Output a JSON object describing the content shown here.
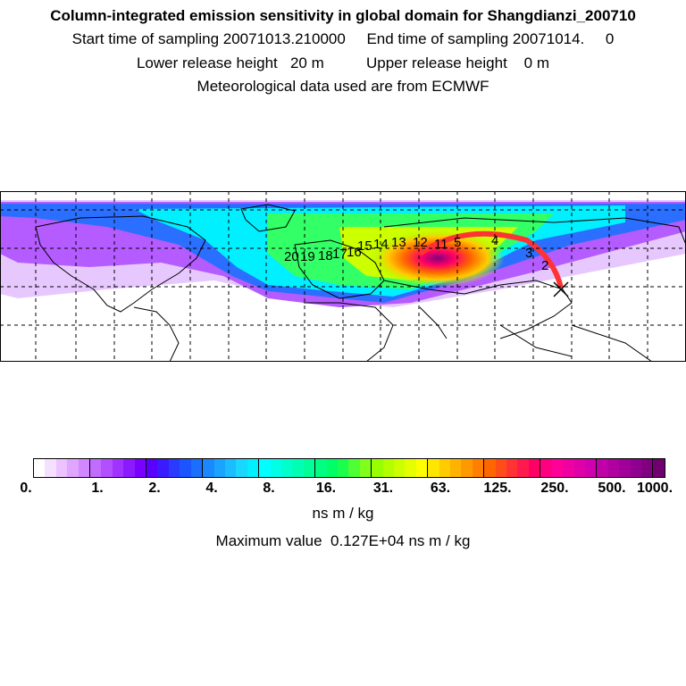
{
  "header": {
    "title": "Column-integrated emission sensitivity in global domain for Shangdianzi_200710",
    "line2": "Start time of sampling 20071013.210000     End time of sampling 20071014.     0",
    "line3": "Lower release height   20 m          Upper release height    0 m",
    "line4": "Meteorological data used are from ECMWF"
  },
  "map": {
    "day_labels": [
      "20",
      "19",
      "18",
      "17",
      "16",
      "15",
      "14",
      "13",
      "12",
      "11",
      "5",
      "4",
      "3",
      "2"
    ],
    "station": "Shangdianzi"
  },
  "colorbar": {
    "tick_labels": [
      "0.",
      "1.",
      "2.",
      "4.",
      "8.",
      "16.",
      "31.",
      "63.",
      "125.",
      "250.",
      "500.",
      "1000."
    ],
    "colors": [
      "#ffffff",
      "#f5e1ff",
      "#ebc3ff",
      "#e0a5ff",
      "#d187ff",
      "#c26bff",
      "#b24fff",
      "#a033ff",
      "#8c1aff",
      "#7a00ff",
      "#5a00ff",
      "#3a1aff",
      "#2a3aff",
      "#1a55ff",
      "#1a6fff",
      "#1a89ff",
      "#1aa3ff",
      "#1abdff",
      "#1ad7ff",
      "#00f0ff",
      "#00ffff",
      "#00ffe6",
      "#00ffcc",
      "#00ffb3",
      "#00ff99",
      "#00ff80",
      "#00ff66",
      "#1aff4d",
      "#4dff33",
      "#80ff1a",
      "#99ff00",
      "#b3ff00",
      "#ccff00",
      "#e6ff00",
      "#ffff00",
      "#ffe600",
      "#ffcc00",
      "#ffb300",
      "#ff9900",
      "#ff8000",
      "#ff6600",
      "#ff4d1a",
      "#ff3333",
      "#ff1a4d",
      "#ff0066",
      "#ff0080",
      "#ff0099",
      "#f000a0",
      "#e000a8",
      "#d000b0",
      "#c000a8",
      "#b000a0",
      "#a00098",
      "#900090",
      "#800080",
      "#700070"
    ],
    "unit": "ns m / kg",
    "max_value_text": "Maximum value  0.127E+04 ns m / kg"
  }
}
